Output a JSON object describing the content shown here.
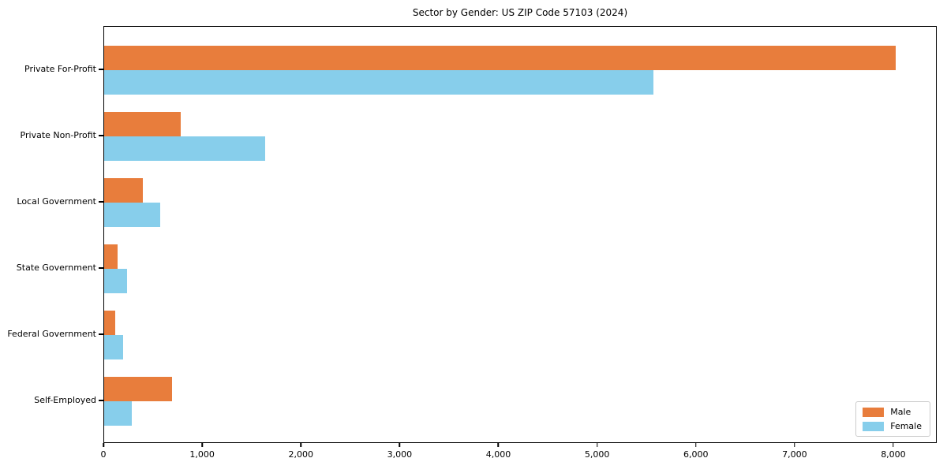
{
  "title": "Sector by Gender: US ZIP Code 57103 (2024)",
  "chart_data": {
    "type": "bar",
    "orientation": "horizontal",
    "title": "Sector by Gender: US ZIP Code 57103 (2024)",
    "categories": [
      "Private For-Profit",
      "Private Non-Profit",
      "Local Government",
      "State Government",
      "Federal Government",
      "Self-Employed"
    ],
    "series": [
      {
        "name": "Male",
        "color": "#e87d3c",
        "values": [
          8030,
          780,
          390,
          140,
          110,
          690
        ]
      },
      {
        "name": "Female",
        "color": "#87ceeb",
        "values": [
          5570,
          1630,
          570,
          230,
          190,
          280
        ]
      }
    ],
    "xlim": [
      0,
      8440
    ],
    "xticks": [
      0,
      1000,
      2000,
      3000,
      4000,
      5000,
      6000,
      7000,
      8000
    ],
    "xtick_labels": [
      "0",
      "1,000",
      "2,000",
      "3,000",
      "4,000",
      "5,000",
      "6,000",
      "7,000",
      "8,000"
    ],
    "legend": {
      "position": "lower right",
      "entries": [
        "Male",
        "Female"
      ]
    },
    "grid": false,
    "background": "#ffffff",
    "bar_colors": {
      "male": "#e87d3c",
      "female": "#87ceeb"
    }
  }
}
